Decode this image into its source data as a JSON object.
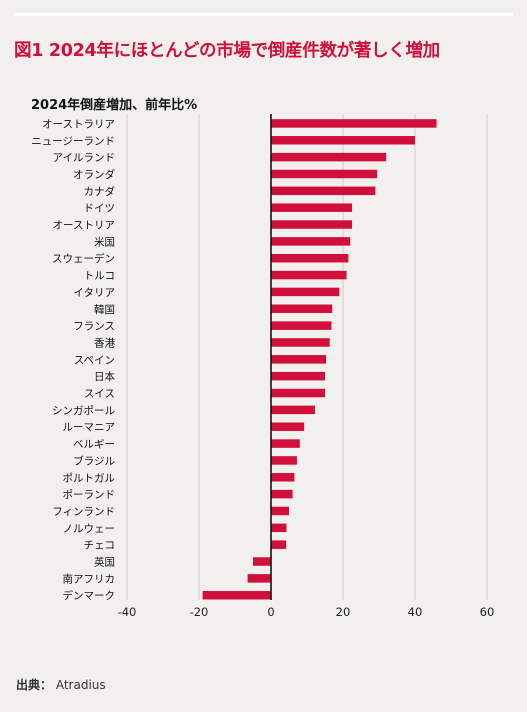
{
  "figure_title": "図1 2024年にほとんどの市場で倒産件数が著しく増加",
  "source": {
    "label": "出典：",
    "value": "Atradius"
  },
  "chart_data": {
    "type": "bar",
    "orientation": "horizontal",
    "title": "2024年倒産増加、前年比%",
    "xlabel": "",
    "ylabel": "",
    "xlim": [
      -40,
      60
    ],
    "xticks": [
      -40,
      -20,
      0,
      20,
      40,
      60
    ],
    "grid": "vertical",
    "bar_color": "#d0103a",
    "categories": [
      "オーストラリア",
      "ニュージーランド",
      "アイルランド",
      "オランダ",
      "カナダ",
      "ドイツ",
      "オーストリア",
      "米国",
      "スウェーデン",
      "トルコ",
      "イタリア",
      "韓国",
      "フランス",
      "香港",
      "スペイン",
      "日本",
      "スイス",
      "シンガポール",
      "ルーマニア",
      "ベルギー",
      "ブラジル",
      "ポルトガル",
      "ポーランド",
      "フィンランド",
      "ノルウェー",
      "チェコ",
      "英国",
      "南アフリカ",
      "デンマーク"
    ],
    "values": [
      46,
      40,
      32,
      29.5,
      29,
      22.5,
      22.5,
      22,
      21.5,
      21,
      19,
      17,
      16.8,
      16.3,
      15.3,
      15,
      15,
      12.2,
      9.2,
      8,
      7.2,
      6.5,
      6,
      5,
      4.3,
      4.2,
      -5,
      -6.5,
      -19
    ]
  }
}
